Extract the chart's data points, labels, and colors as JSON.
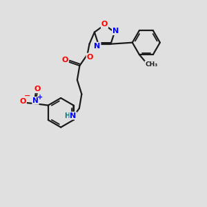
{
  "bg_color": "#e0e0e0",
  "bond_color": "#1a1a1a",
  "red": "#ff0000",
  "blue": "#0000ff",
  "teal": "#008080",
  "figsize": [
    3.0,
    3.0
  ],
  "dpi": 100,
  "xlim": [
    0,
    10
  ],
  "ylim": [
    0,
    10
  ]
}
